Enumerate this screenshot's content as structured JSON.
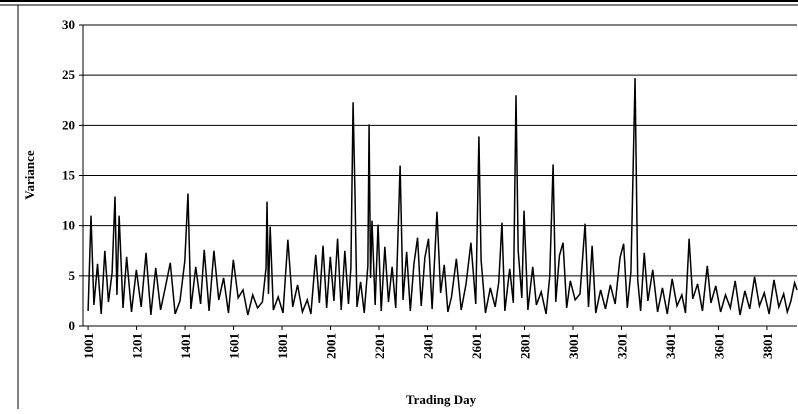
{
  "chart_data": {
    "type": "line",
    "y_label": "Variance",
    "x_label": "Trading Day",
    "color": "#000000",
    "grid": true,
    "xlim": [
      980,
      3925
    ],
    "ylim": [
      0,
      30
    ],
    "xticks": [
      1001,
      1201,
      1401,
      1601,
      1801,
      2001,
      2201,
      2401,
      2601,
      2801,
      3001,
      3201,
      3401,
      3601,
      3801
    ],
    "yticks": [
      0,
      5,
      10,
      15,
      20,
      25,
      30
    ],
    "x": [
      1001,
      1013,
      1025,
      1040,
      1055,
      1070,
      1085,
      1100,
      1112,
      1120,
      1129,
      1145,
      1160,
      1180,
      1200,
      1220,
      1240,
      1260,
      1280,
      1300,
      1320,
      1340,
      1360,
      1380,
      1400,
      1413,
      1425,
      1445,
      1465,
      1480,
      1500,
      1520,
      1540,
      1560,
      1580,
      1600,
      1620,
      1640,
      1660,
      1680,
      1700,
      1720,
      1735,
      1739,
      1745,
      1752,
      1765,
      1785,
      1805,
      1825,
      1845,
      1865,
      1885,
      1905,
      1920,
      1940,
      1955,
      1970,
      1985,
      2000,
      2015,
      2030,
      2045,
      2060,
      2075,
      2085,
      2094,
      2102,
      2110,
      2125,
      2140,
      2155,
      2160,
      2166,
      2172,
      2185,
      2197,
      2210,
      2225,
      2240,
      2255,
      2270,
      2288,
      2300,
      2315,
      2330,
      2345,
      2360,
      2375,
      2390,
      2405,
      2420,
      2440,
      2455,
      2470,
      2485,
      2500,
      2520,
      2540,
      2560,
      2580,
      2600,
      2613,
      2622,
      2640,
      2660,
      2680,
      2695,
      2708,
      2720,
      2740,
      2755,
      2766,
      2775,
      2790,
      2799,
      2815,
      2835,
      2850,
      2870,
      2890,
      2905,
      2919,
      2930,
      2945,
      2960,
      2975,
      2990,
      3010,
      3030,
      3051,
      3065,
      3080,
      3095,
      3115,
      3135,
      3155,
      3175,
      3195,
      3210,
      3225,
      3240,
      3257,
      3268,
      3280,
      3295,
      3310,
      3330,
      3350,
      3370,
      3390,
      3410,
      3430,
      3450,
      3465,
      3480,
      3495,
      3515,
      3535,
      3555,
      3570,
      3590,
      3610,
      3630,
      3650,
      3670,
      3690,
      3710,
      3730,
      3750,
      3770,
      3790,
      3810,
      3830,
      3850,
      3870,
      3885,
      3900,
      3915,
      3925
    ],
    "values": [
      1.5,
      11,
      2.1,
      6.2,
      1.2,
      7.5,
      2.4,
      5.3,
      12.9,
      3.1,
      11,
      1.8,
      6.9,
      1.4,
      5.6,
      1.9,
      7.3,
      1.1,
      5.8,
      1.6,
      3.9,
      6.3,
      1.2,
      2.5,
      6.5,
      13.2,
      1.7,
      5.9,
      2.2,
      7.6,
      1.5,
      7.5,
      2.6,
      4.8,
      1.3,
      6.6,
      2.8,
      3.6,
      1.1,
      3.1,
      1.8,
      2.4,
      5.8,
      12.4,
      3.2,
      9.9,
      1.6,
      2.9,
      1.3,
      8.6,
      1.9,
      4.1,
      1.4,
      2.6,
      1.2,
      7.1,
      2.3,
      8,
      1.8,
      6.9,
      2.5,
      8.7,
      1.6,
      7.5,
      2.2,
      5.8,
      22.3,
      13,
      1.9,
      4.4,
      1.3,
      6,
      20.1,
      4.8,
      10.5,
      2.1,
      10.1,
      1.5,
      7.9,
      2.4,
      5.9,
      1.8,
      16,
      2.6,
      7.4,
      1.5,
      6.2,
      8.8,
      2,
      6.8,
      8.7,
      1.7,
      11.4,
      3.3,
      6.1,
      1.4,
      2.9,
      6.7,
      1.6,
      4.2,
      8.3,
      2.2,
      18.9,
      6.6,
      1.3,
      3.8,
      1.9,
      4.4,
      10.3,
      1.5,
      5.7,
      2.3,
      23,
      7.5,
      2.8,
      11.5,
      1.6,
      5.9,
      2.1,
      3.4,
      1.2,
      4.9,
      16.1,
      2.4,
      7,
      8.3,
      1.8,
      4.5,
      2.6,
      3.2,
      10.2,
      1.9,
      8,
      1.3,
      3.6,
      1.7,
      4.1,
      2.2,
      6.8,
      8.2,
      1.8,
      5.4,
      24.7,
      4.6,
      1.5,
      7.3,
      2.5,
      5.6,
      1.4,
      3.8,
      1.2,
      4.7,
      2,
      3.1,
      1.3,
      8.7,
      2.7,
      4.2,
      1.5,
      6,
      2.3,
      4,
      1.4,
      3.1,
      1.8,
      4.5,
      1.1,
      3.5,
      1.7,
      4.9,
      2,
      3.3,
      1.2,
      4.6,
      1.9,
      3.2,
      1.4,
      2.5,
      4.3,
      3.6
    ]
  }
}
